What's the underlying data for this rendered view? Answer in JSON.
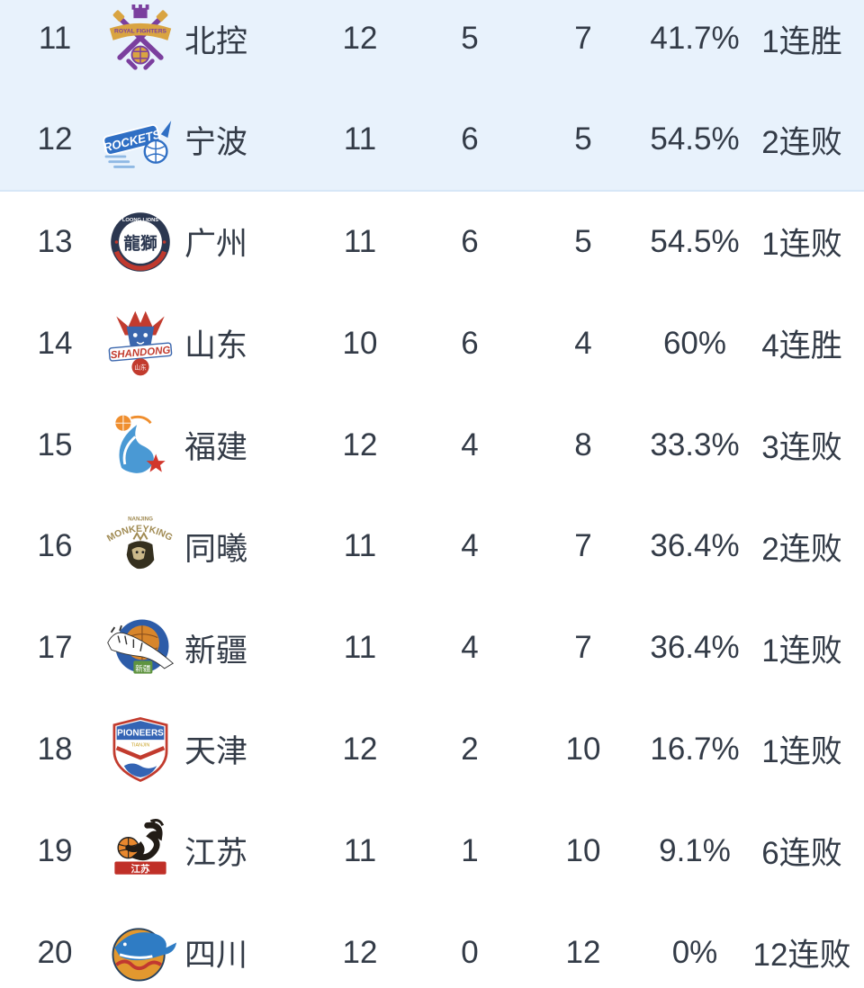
{
  "theme": {
    "highlight_bg": "#e8f2fc",
    "highlight_divider": "#d7e7f7",
    "row_bg": "#ffffff",
    "text_color": "#333b47"
  },
  "standings": {
    "rows": [
      {
        "rank": "11",
        "team": "北控",
        "games": "12",
        "wins": "5",
        "losses": "7",
        "win_pct": "41.7%",
        "streak": "1连胜",
        "highlight": true,
        "logo": {
          "style": "royal-fighters-crossed-cannons",
          "colors": [
            "#7b3f9e",
            "#d9a441"
          ],
          "text": "ROYAL FIGHTERS"
        }
      },
      {
        "rank": "12",
        "team": "宁波",
        "games": "11",
        "wins": "6",
        "losses": "5",
        "win_pct": "54.5%",
        "streak": "2连败",
        "highlight": true,
        "logo": {
          "style": "rockets-banner",
          "colors": [
            "#2f6fc4",
            "#8fb9e4"
          ],
          "text": "ROCKETS"
        }
      },
      {
        "rank": "13",
        "team": "广州",
        "games": "11",
        "wins": "6",
        "losses": "5",
        "win_pct": "54.5%",
        "streak": "1连败",
        "highlight": false,
        "logo": {
          "style": "loong-lions-circle",
          "colors": [
            "#2b3750",
            "#c0392e"
          ],
          "text": "龍獅",
          "arc_text": "LOONG LIONS"
        }
      },
      {
        "rank": "14",
        "team": "山东",
        "games": "10",
        "wins": "6",
        "losses": "4",
        "win_pct": "60%",
        "streak": "4连胜",
        "highlight": false,
        "logo": {
          "style": "kirin-flames",
          "colors": [
            "#3a66ad",
            "#c23b2e"
          ],
          "text": "SHANDONG",
          "sub_text": "山东"
        }
      },
      {
        "rank": "15",
        "team": "福建",
        "games": "12",
        "wins": "4",
        "losses": "8",
        "win_pct": "33.3%",
        "streak": "3连败",
        "highlight": false,
        "logo": {
          "style": "sturgeon-fish",
          "colors": [
            "#4a99d4",
            "#ef8e2e",
            "#d2372c"
          ]
        }
      },
      {
        "rank": "16",
        "team": "同曦",
        "games": "11",
        "wins": "4",
        "losses": "7",
        "win_pct": "36.4%",
        "streak": "2连败",
        "highlight": false,
        "logo": {
          "style": "monkey-king",
          "colors": [
            "#a08a52",
            "#35301f"
          ],
          "text": "MONKEYKINGS",
          "arc_text": "NANJING"
        }
      },
      {
        "rank": "17",
        "team": "新疆",
        "games": "11",
        "wins": "4",
        "losses": "7",
        "win_pct": "36.4%",
        "streak": "1连败",
        "highlight": false,
        "logo": {
          "style": "flying-tiger",
          "colors": [
            "#2d5ca8",
            "#d8862c",
            "#5f9440"
          ],
          "text": "新疆"
        }
      },
      {
        "rank": "18",
        "team": "天津",
        "games": "12",
        "wins": "2",
        "losses": "10",
        "win_pct": "16.7%",
        "streak": "1连败",
        "highlight": false,
        "logo": {
          "style": "pioneers-shield",
          "colors": [
            "#3464b4",
            "#c23b2e"
          ],
          "text": "PIONEERS"
        }
      },
      {
        "rank": "19",
        "team": "江苏",
        "games": "11",
        "wins": "1",
        "losses": "10",
        "win_pct": "9.1%",
        "streak": "6连败",
        "highlight": false,
        "logo": {
          "style": "dragon",
          "colors": [
            "#221c16",
            "#e8882e",
            "#c03028"
          ],
          "text": "江苏"
        }
      },
      {
        "rank": "20",
        "team": "四川",
        "games": "12",
        "wins": "0",
        "losses": "12",
        "win_pct": "0%",
        "streak": "12连败",
        "highlight": false,
        "logo": {
          "style": "blue-whale",
          "colors": [
            "#e2982f",
            "#2f7cc4",
            "#c13830"
          ]
        }
      }
    ]
  }
}
